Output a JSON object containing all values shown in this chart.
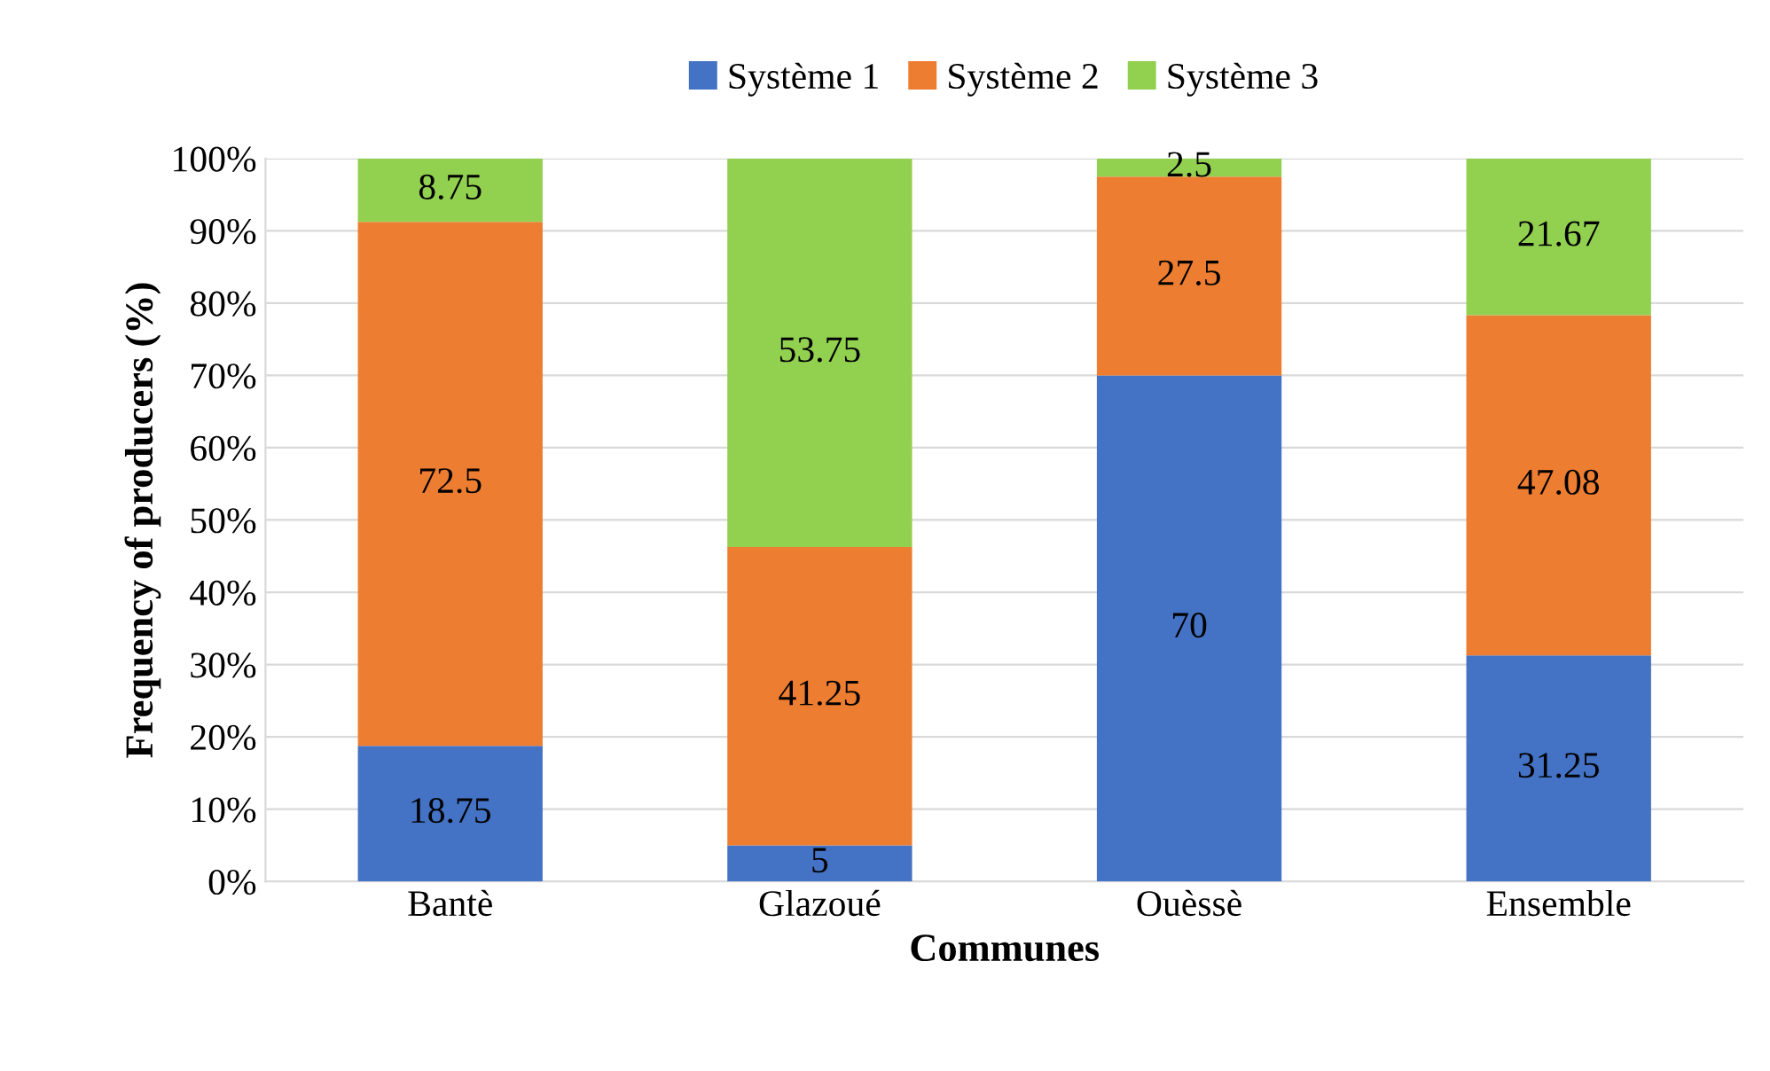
{
  "chart_data": {
    "type": "bar",
    "stacked": true,
    "xlabel": "Communes",
    "ylabel": "Frequency of producers (%)",
    "categories": [
      "Bantè",
      "Glazoué",
      "Ouèssè",
      "Ensemble"
    ],
    "series": [
      {
        "name": "Système 1",
        "color": "#4472c4",
        "values": [
          18.75,
          5,
          70,
          31.25
        ]
      },
      {
        "name": "Système 2",
        "color": "#ed7d31",
        "values": [
          72.5,
          41.25,
          27.5,
          47.08
        ]
      },
      {
        "name": "Système 3",
        "color": "#92d050",
        "values": [
          8.75,
          53.75,
          2.5,
          21.67
        ]
      }
    ],
    "ylim": [
      0,
      100
    ],
    "yticks": [
      {
        "value": 0,
        "label": "0%"
      },
      {
        "value": 10,
        "label": "10%"
      },
      {
        "value": 20,
        "label": "20%"
      },
      {
        "value": 30,
        "label": "30%"
      },
      {
        "value": 40,
        "label": "40%"
      },
      {
        "value": 50,
        "label": "50%"
      },
      {
        "value": 60,
        "label": "60%"
      },
      {
        "value": 70,
        "label": "70%"
      },
      {
        "value": 80,
        "label": "80%"
      },
      {
        "value": 90,
        "label": "90%"
      },
      {
        "value": 100,
        "label": "100%"
      }
    ],
    "grid": "y",
    "legend": "top",
    "data_labels": true
  }
}
